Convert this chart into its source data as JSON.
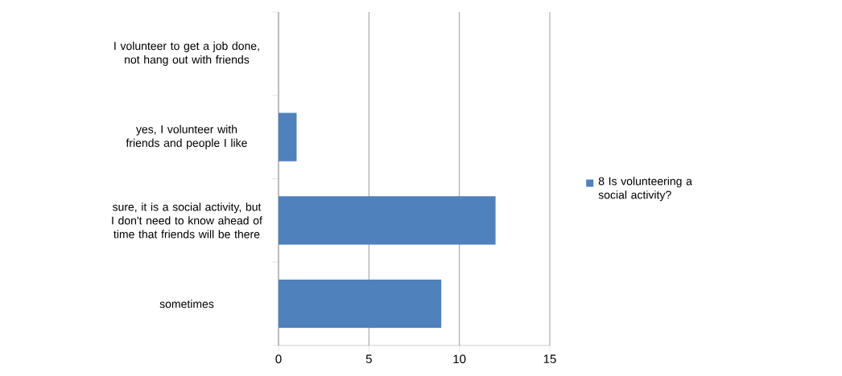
{
  "chart_data": {
    "type": "bar",
    "orientation": "horizontal",
    "categories": [
      "I volunteer to get a job done, not hang out with friends",
      "yes, I volunteer with friends and people I like",
      "sure, it is a social activity, but I don't need to know ahead of time that friends will be there",
      "sometimes"
    ],
    "series": [
      {
        "name": "8 Is volunteering a social activity?",
        "color": "#4f81bd",
        "values": [
          0,
          1,
          12,
          9
        ]
      }
    ],
    "xlim": [
      0,
      15
    ],
    "xticks": [
      0,
      5,
      10,
      15
    ],
    "grid": "x",
    "legend": "right"
  }
}
